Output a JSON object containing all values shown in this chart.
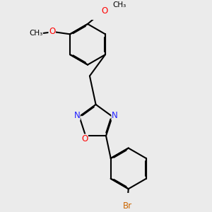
{
  "background_color": "#ebebeb",
  "bond_color": "#000000",
  "bond_width": 1.5,
  "dbo": 0.04,
  "atom_colors": {
    "N": "#2020ff",
    "O": "#ff0000",
    "Br": "#cc6600",
    "C": "#000000"
  },
  "font_size_atom": 8.5,
  "font_size_me": 7.5
}
